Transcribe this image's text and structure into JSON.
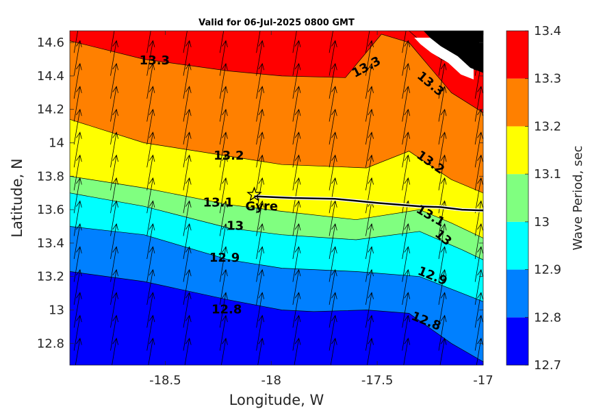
{
  "chart_data": {
    "type": "contour",
    "title": "Valid for 06-Jul-2025 0800 GMT",
    "xlabel": "Longitude, W",
    "ylabel": "Latitude, N",
    "xlim": [
      -18.95,
      -17.0
    ],
    "ylim": [
      12.67,
      14.67
    ],
    "xticks": [
      -18.5,
      -18,
      -17.5,
      -17
    ],
    "xtick_labels": [
      "-18.5",
      "-18",
      "-17.5",
      "-17"
    ],
    "yticks": [
      12.8,
      13.0,
      13.2,
      13.4,
      13.6,
      13.8,
      14.0,
      14.2,
      14.4,
      14.6
    ],
    "ytick_labels": [
      "12.8",
      "13",
      "13.2",
      "13.4",
      "13.6",
      "13.8",
      "14",
      "14.2",
      "14.4",
      "14.6"
    ],
    "colorbar": {
      "label": "Wave Period, sec",
      "levels": [
        12.7,
        12.8,
        12.9,
        13.0,
        13.1,
        13.2,
        13.3,
        13.4
      ],
      "tick_labels": [
        "12.7",
        "12.8",
        "12.9",
        "13",
        "13.1",
        "13.2",
        "13.3",
        "13.4"
      ],
      "colors": [
        "#0000ff",
        "#0080ff",
        "#00ffff",
        "#80ff80",
        "#ffff00",
        "#ff8000",
        "#ff0000"
      ]
    },
    "contours": [
      {
        "level": 12.8,
        "label": "12.8",
        "points": [
          [
            -18.95,
            13.23
          ],
          [
            -18.6,
            13.17
          ],
          [
            -18.2,
            13.06
          ],
          [
            -17.95,
            13.0
          ],
          [
            -17.8,
            12.99
          ],
          [
            -17.55,
            13.0
          ],
          [
            -17.35,
            12.98
          ],
          [
            -17.15,
            12.8
          ],
          [
            -17.0,
            12.69
          ]
        ]
      },
      {
        "level": 12.9,
        "label": "12.9",
        "points": [
          [
            -18.95,
            13.5
          ],
          [
            -18.6,
            13.45
          ],
          [
            -18.2,
            13.3
          ],
          [
            -17.95,
            13.25
          ],
          [
            -17.6,
            13.23
          ],
          [
            -17.3,
            13.2
          ],
          [
            -17.1,
            13.1
          ],
          [
            -17.0,
            13.05
          ]
        ]
      },
      {
        "level": 13.0,
        "label": "13",
        "points": [
          [
            -18.95,
            13.7
          ],
          [
            -18.6,
            13.62
          ],
          [
            -18.2,
            13.49
          ],
          [
            -17.95,
            13.45
          ],
          [
            -17.6,
            13.42
          ],
          [
            -17.3,
            13.47
          ],
          [
            -17.1,
            13.36
          ],
          [
            -17.0,
            13.3
          ]
        ]
      },
      {
        "level": 13.1,
        "label": "13.1",
        "points": [
          [
            -18.95,
            13.8
          ],
          [
            -18.6,
            13.73
          ],
          [
            -18.2,
            13.63
          ],
          [
            -17.95,
            13.59
          ],
          [
            -17.6,
            13.54
          ],
          [
            -17.3,
            13.6
          ],
          [
            -17.15,
            13.52
          ],
          [
            -17.0,
            13.43
          ]
        ]
      },
      {
        "level": 13.2,
        "label": "13.2",
        "points": [
          [
            -18.95,
            14.14
          ],
          [
            -18.6,
            14.0
          ],
          [
            -18.2,
            13.92
          ],
          [
            -17.95,
            13.87
          ],
          [
            -17.55,
            13.85
          ],
          [
            -17.35,
            13.95
          ],
          [
            -17.15,
            13.78
          ],
          [
            -17.0,
            13.7
          ]
        ]
      },
      {
        "level": 13.3,
        "label": "13.3",
        "points": [
          [
            -18.95,
            14.61
          ],
          [
            -18.6,
            14.5
          ],
          [
            -18.2,
            14.43
          ],
          [
            -17.95,
            14.4
          ],
          [
            -17.65,
            14.39
          ],
          [
            -17.48,
            14.65
          ],
          [
            -17.35,
            14.6
          ],
          [
            -17.15,
            14.3
          ],
          [
            -17.0,
            14.18
          ]
        ]
      },
      {
        "level": 13.4,
        "label": "",
        "points": [
          [
            -17.45,
            14.67
          ],
          [
            -17.35,
            14.67
          ],
          [
            -17.2,
            14.5
          ],
          [
            -17.1,
            14.45
          ],
          [
            -17.0,
            14.43
          ]
        ]
      }
    ],
    "contour_labels": [
      {
        "text": "13.3",
        "x": -18.55,
        "y": 14.49,
        "angle": 0
      },
      {
        "text": "13.3",
        "x": -17.55,
        "y": 14.45,
        "angle": -28
      },
      {
        "text": "13.3",
        "x": -17.25,
        "y": 14.35,
        "angle": 40
      },
      {
        "text": "13.2",
        "x": -18.2,
        "y": 13.92,
        "angle": 0
      },
      {
        "text": "13.2",
        "x": -17.25,
        "y": 13.88,
        "angle": 35
      },
      {
        "text": "13.1",
        "x": -18.25,
        "y": 13.64,
        "angle": 0
      },
      {
        "text": "13.1",
        "x": -17.25,
        "y": 13.56,
        "angle": 30
      },
      {
        "text": "13",
        "x": -18.17,
        "y": 13.5,
        "angle": 0
      },
      {
        "text": "13",
        "x": -17.19,
        "y": 13.43,
        "angle": 40
      },
      {
        "text": "12.9",
        "x": -18.22,
        "y": 13.31,
        "angle": 0
      },
      {
        "text": "12.9",
        "x": -17.24,
        "y": 13.2,
        "angle": 22
      },
      {
        "text": "12.8",
        "x": -18.21,
        "y": 13.0,
        "angle": 0
      },
      {
        "text": "12.8",
        "x": -17.27,
        "y": 12.93,
        "angle": 22
      }
    ],
    "land": [
      [
        -17.28,
        14.67
      ],
      [
        -17.0,
        14.67
      ],
      [
        -17.0,
        14.42
      ],
      [
        -17.06,
        14.45
      ],
      [
        -17.12,
        14.52
      ],
      [
        -17.2,
        14.58
      ],
      [
        -17.25,
        14.63
      ]
    ],
    "land_color": "#000000",
    "coast_strip_color": "#ffffff",
    "track": {
      "color": "#000000",
      "points": [
        [
          -18.08,
          13.68
        ],
        [
          -17.9,
          13.67
        ],
        [
          -17.7,
          13.665
        ],
        [
          -17.5,
          13.64
        ],
        [
          -17.3,
          13.62
        ],
        [
          -17.2,
          13.615
        ],
        [
          -17.1,
          13.6
        ],
        [
          -17.0,
          13.595
        ]
      ]
    },
    "marker": {
      "label": "Gyre",
      "x": -18.08,
      "y": 13.69,
      "symbol": "star"
    },
    "vectors": {
      "direction": "north-northeast",
      "grid_dx": 0.172,
      "grid_dy": 0.137,
      "u": 0.17,
      "v": 1.0
    }
  }
}
